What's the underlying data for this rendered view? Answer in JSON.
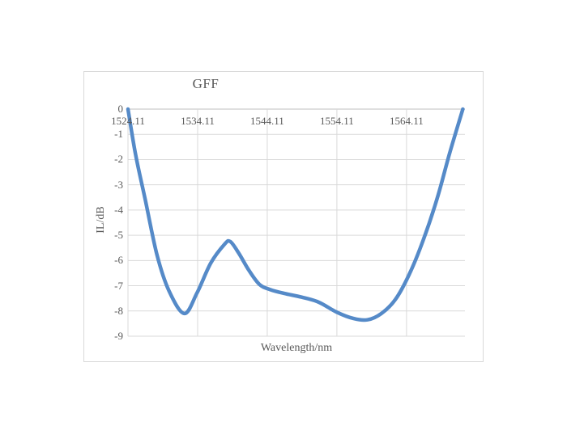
{
  "chart_data": {
    "type": "line",
    "title": "GFF",
    "xlabel": "Wavelength/nm",
    "ylabel": "IL/dB",
    "xlim": [
      1524.11,
      1572.5
    ],
    "ylim": [
      -9,
      0
    ],
    "xticks": {
      "values": [
        1524.11,
        1534.11,
        1544.11,
        1554.11,
        1564.11
      ],
      "labels": [
        "1524.11",
        "1534.11",
        "1544.11",
        "1554.11",
        "1564.11"
      ]
    },
    "yticks": {
      "values": [
        0,
        -1,
        -2,
        -3,
        -4,
        -5,
        -6,
        -7,
        -8,
        -9
      ],
      "labels": [
        "0",
        "-1",
        "-2",
        "-3",
        "-4",
        "-5",
        "-6",
        "-7",
        "-8",
        "-9"
      ]
    },
    "grid": true,
    "legend": false,
    "series": [
      {
        "points": [
          [
            1524.11,
            0
          ],
          [
            1525.2,
            -1.8
          ],
          [
            1526.6,
            -3.6
          ],
          [
            1528.3,
            -5.8
          ],
          [
            1530.0,
            -7.2
          ],
          [
            1532.2,
            -8.1
          ],
          [
            1534.0,
            -7.3
          ],
          [
            1536.0,
            -6.1
          ],
          [
            1538.0,
            -5.35
          ],
          [
            1538.8,
            -5.25
          ],
          [
            1540.0,
            -5.7
          ],
          [
            1541.5,
            -6.4
          ],
          [
            1543.0,
            -6.95
          ],
          [
            1544.5,
            -7.15
          ],
          [
            1546.5,
            -7.3
          ],
          [
            1549.0,
            -7.45
          ],
          [
            1551.5,
            -7.65
          ],
          [
            1554.1,
            -8.05
          ],
          [
            1556.5,
            -8.3
          ],
          [
            1558.5,
            -8.35
          ],
          [
            1560.5,
            -8.1
          ],
          [
            1562.5,
            -7.55
          ],
          [
            1564.5,
            -6.55
          ],
          [
            1566.5,
            -5.2
          ],
          [
            1568.5,
            -3.55
          ],
          [
            1570.3,
            -1.75
          ],
          [
            1572.2,
            0
          ]
        ]
      }
    ]
  },
  "colors": {
    "line": "#558AC8",
    "grid": "#D9D9D9",
    "axis": "#BFBFBF",
    "text": "#595959",
    "chart_border": "#D9D9D9",
    "background": "#FFFFFF"
  }
}
